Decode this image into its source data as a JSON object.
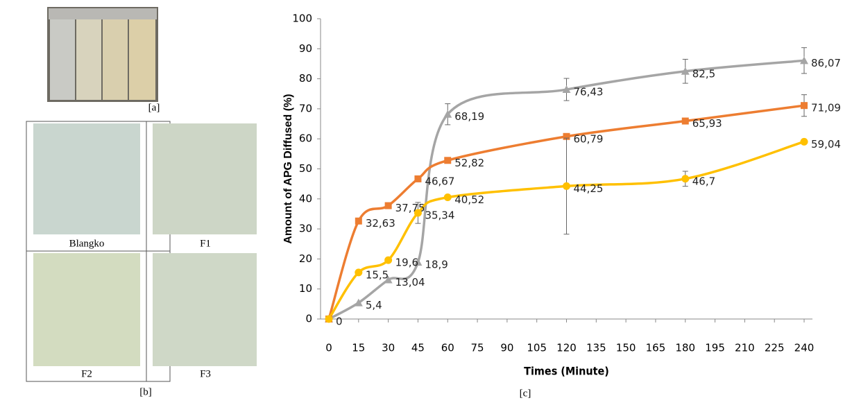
{
  "figure": {
    "panel_a_label": "[a]",
    "panel_b_label": "[b]",
    "panel_c_label": "[c]",
    "dishes": [
      "Blangko",
      "F1",
      "F2",
      "F3"
    ]
  },
  "chart_data": {
    "type": "line",
    "x_label": "Times (Minute)",
    "y_label": "Amount of APG Diffused (%)",
    "x": [
      0,
      15,
      30,
      45,
      60,
      120,
      180,
      240
    ],
    "xlim": [
      0,
      240
    ],
    "xticks": [
      0,
      15,
      30,
      45,
      60,
      75,
      90,
      105,
      120,
      135,
      150,
      165,
      180,
      195,
      210,
      225,
      240
    ],
    "ylim": [
      0,
      100
    ],
    "yticks": [
      0,
      10,
      20,
      30,
      40,
      50,
      60,
      70,
      80,
      90,
      100
    ],
    "grid": false,
    "smooth": true,
    "series": [
      {
        "color": "#a5a5a5",
        "marker": "triangle",
        "values": [
          0,
          5.4,
          13.04,
          18.9,
          68.19,
          76.43,
          82.5,
          86.07
        ],
        "value_labels": [
          "0",
          "5,4",
          "13,04",
          "18,9",
          "68,19",
          "76,43",
          "82,5",
          "86,07"
        ],
        "errors": [
          null,
          null,
          null,
          null,
          3.5,
          3.7,
          4,
          4.3
        ]
      },
      {
        "color": "#ed7d31",
        "marker": "square",
        "values": [
          0,
          32.63,
          37.75,
          46.67,
          52.82,
          60.79,
          65.93,
          71.09
        ],
        "value_labels": [
          null,
          "32,63",
          "37,75",
          "46,67",
          "52,82",
          "60,79",
          "65,93",
          "71,09"
        ],
        "errors": [
          null,
          null,
          null,
          null,
          null,
          null,
          null,
          3.6
        ]
      },
      {
        "color": "#ffc000",
        "marker": "circle",
        "values": [
          0,
          15.5,
          19.6,
          35.34,
          40.52,
          44.25,
          46.7,
          59.04
        ],
        "value_labels": [
          null,
          "15,5",
          "19,6",
          "35,34",
          "40,52",
          "44,25",
          "46,7",
          "59,04"
        ],
        "errors": [
          null,
          null,
          null,
          3.5,
          null,
          16,
          2.5,
          null
        ]
      }
    ]
  }
}
